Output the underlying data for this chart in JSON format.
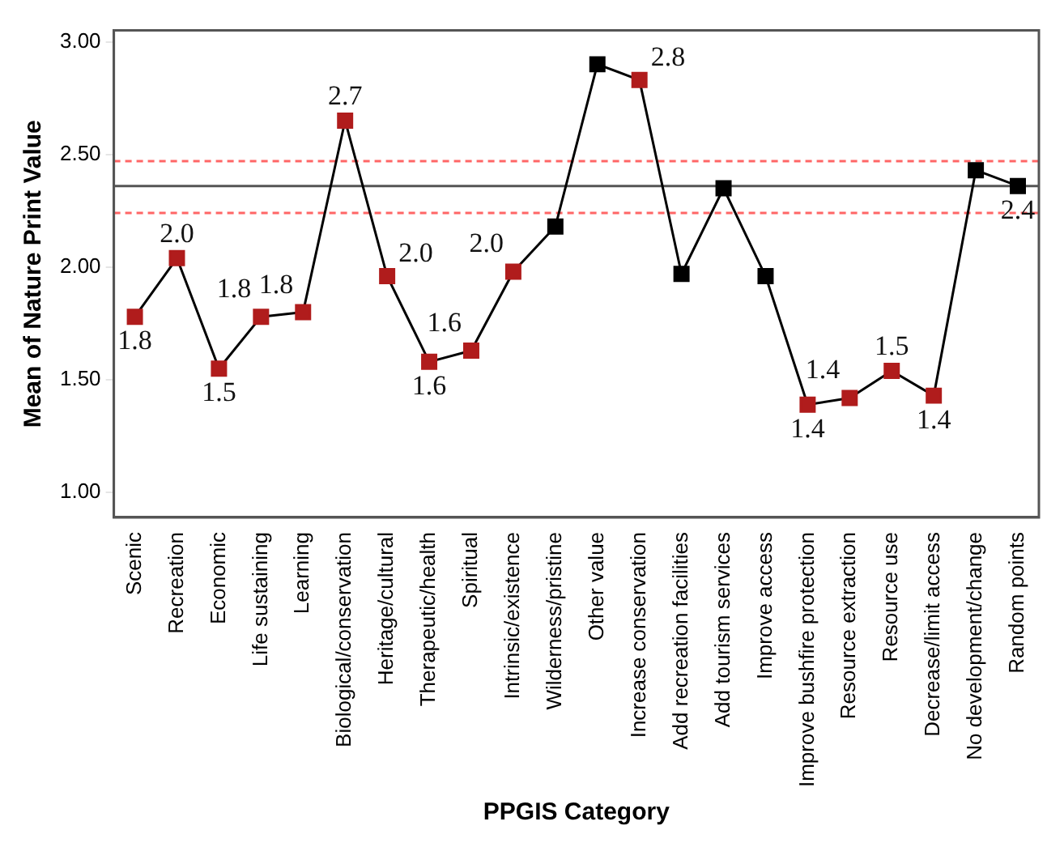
{
  "chart_data": {
    "type": "line",
    "xlabel": "PPGIS Category",
    "ylabel": "Mean of Nature Print Value",
    "categories": [
      "Scenic",
      "Recreation",
      "Economic",
      "Life sustaining",
      "Learning",
      "Biological/conservation",
      "Heritage/cultural",
      "Therapeutic/health",
      "Spiritual",
      "Intrinsic/existence",
      "Wilderness/pristine",
      "Other value",
      "Increase conservation",
      "Add recreation facilities",
      "Add tourism services",
      "Improve access",
      "Improve bushfire protection",
      "Resource extraction",
      "Resource use",
      "Decrease/limit access",
      "No development/change",
      "Random points"
    ],
    "series": [
      {
        "color": "#000000",
        "values": [
          1.78,
          2.04,
          1.55,
          1.78,
          1.8,
          2.65,
          1.96,
          1.58,
          1.63,
          1.98,
          2.18,
          2.9,
          2.83,
          1.97,
          2.35,
          1.96,
          1.39,
          1.42,
          1.54,
          1.43,
          2.43,
          2.36
        ],
        "colors": [
          "#b01c1c",
          "#b01c1c",
          "#b01c1c",
          "#b01c1c",
          "#b01c1c",
          "#b01c1c",
          "#b01c1c",
          "#b01c1c",
          "#b01c1c",
          "#b01c1c",
          "#000000",
          "#000000",
          "#b01c1c",
          "#000000",
          "#000000",
          "#000000",
          "#b01c1c",
          "#b01c1c",
          "#b01c1c",
          "#b01c1c",
          "#000000",
          "#000000"
        ],
        "value_labels": [
          "1.8",
          "2.0",
          "1.5",
          "1.8",
          "1.8",
          "2.7",
          "2.0",
          "1.6",
          "1.6",
          "2.0",
          null,
          null,
          "2.8",
          null,
          null,
          null,
          "1.4",
          "1.4",
          "1.5",
          "1.4",
          null,
          "2.4"
        ]
      }
    ],
    "ylim": [
      0.89,
      3.05
    ],
    "yticks": [
      {
        "value": 1,
        "label": "1.00"
      },
      {
        "value": 1.5,
        "label": "1.50"
      },
      {
        "value": 2,
        "label": "2.00"
      },
      {
        "value": 2.5,
        "label": "2.50"
      },
      {
        "value": 3,
        "label": "3.00"
      }
    ],
    "ref_lines": [
      {
        "axis": "y",
        "value": 2.36,
        "color": "#555555",
        "line_style": "solid"
      },
      {
        "axis": "y",
        "value": 2.47,
        "color": "#ff6666",
        "line_style": "dashed"
      },
      {
        "axis": "y",
        "value": 2.24,
        "color": "#ff6666",
        "line_style": "dashed"
      }
    ],
    "marker": "square",
    "line_style": "solid",
    "grid": false,
    "legend": false
  }
}
